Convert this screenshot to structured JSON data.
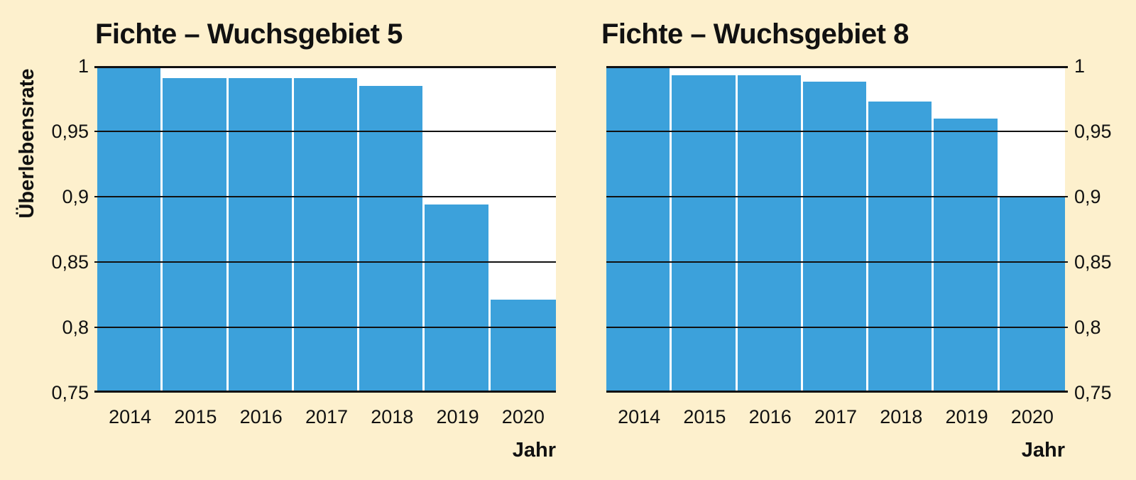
{
  "page": {
    "background_color": "#fdf0cd",
    "text_color": "#111111"
  },
  "chart_data": [
    {
      "type": "bar",
      "title": "Fichte – Wuchsgebiet 5",
      "ylabel": "Überlebensrate",
      "xlabel": "Jahr",
      "categories": [
        "2014",
        "2015",
        "2016",
        "2017",
        "2018",
        "2019",
        "2020"
      ],
      "values": [
        1.0,
        0.991,
        0.991,
        0.991,
        0.985,
        0.894,
        0.821
      ],
      "ylim": [
        0.75,
        1.0
      ],
      "yticks": [
        1.0,
        0.95,
        0.9,
        0.85,
        0.8,
        0.75
      ],
      "ytick_labels": [
        "1",
        "0,95",
        "0,9",
        "0,85",
        "0,8",
        "0,75"
      ],
      "y_axis_side": "left",
      "grid": "horizontal",
      "legend": "none",
      "bar_color": "#3ca1db",
      "plot_background": "#ffffff"
    },
    {
      "type": "bar",
      "title": "Fichte – Wuchsgebiet 8",
      "ylabel": "",
      "xlabel": "Jahr",
      "categories": [
        "2014",
        "2015",
        "2016",
        "2017",
        "2018",
        "2019",
        "2020"
      ],
      "values": [
        1.0,
        0.993,
        0.993,
        0.988,
        0.973,
        0.96,
        0.9
      ],
      "ylim": [
        0.75,
        1.0
      ],
      "yticks": [
        1.0,
        0.95,
        0.9,
        0.85,
        0.8,
        0.75
      ],
      "ytick_labels": [
        "1",
        "0,95",
        "0,9",
        "0,85",
        "0,8",
        "0,75"
      ],
      "y_axis_side": "right",
      "grid": "horizontal",
      "legend": "none",
      "bar_color": "#3ca1db",
      "plot_background": "#ffffff"
    }
  ]
}
